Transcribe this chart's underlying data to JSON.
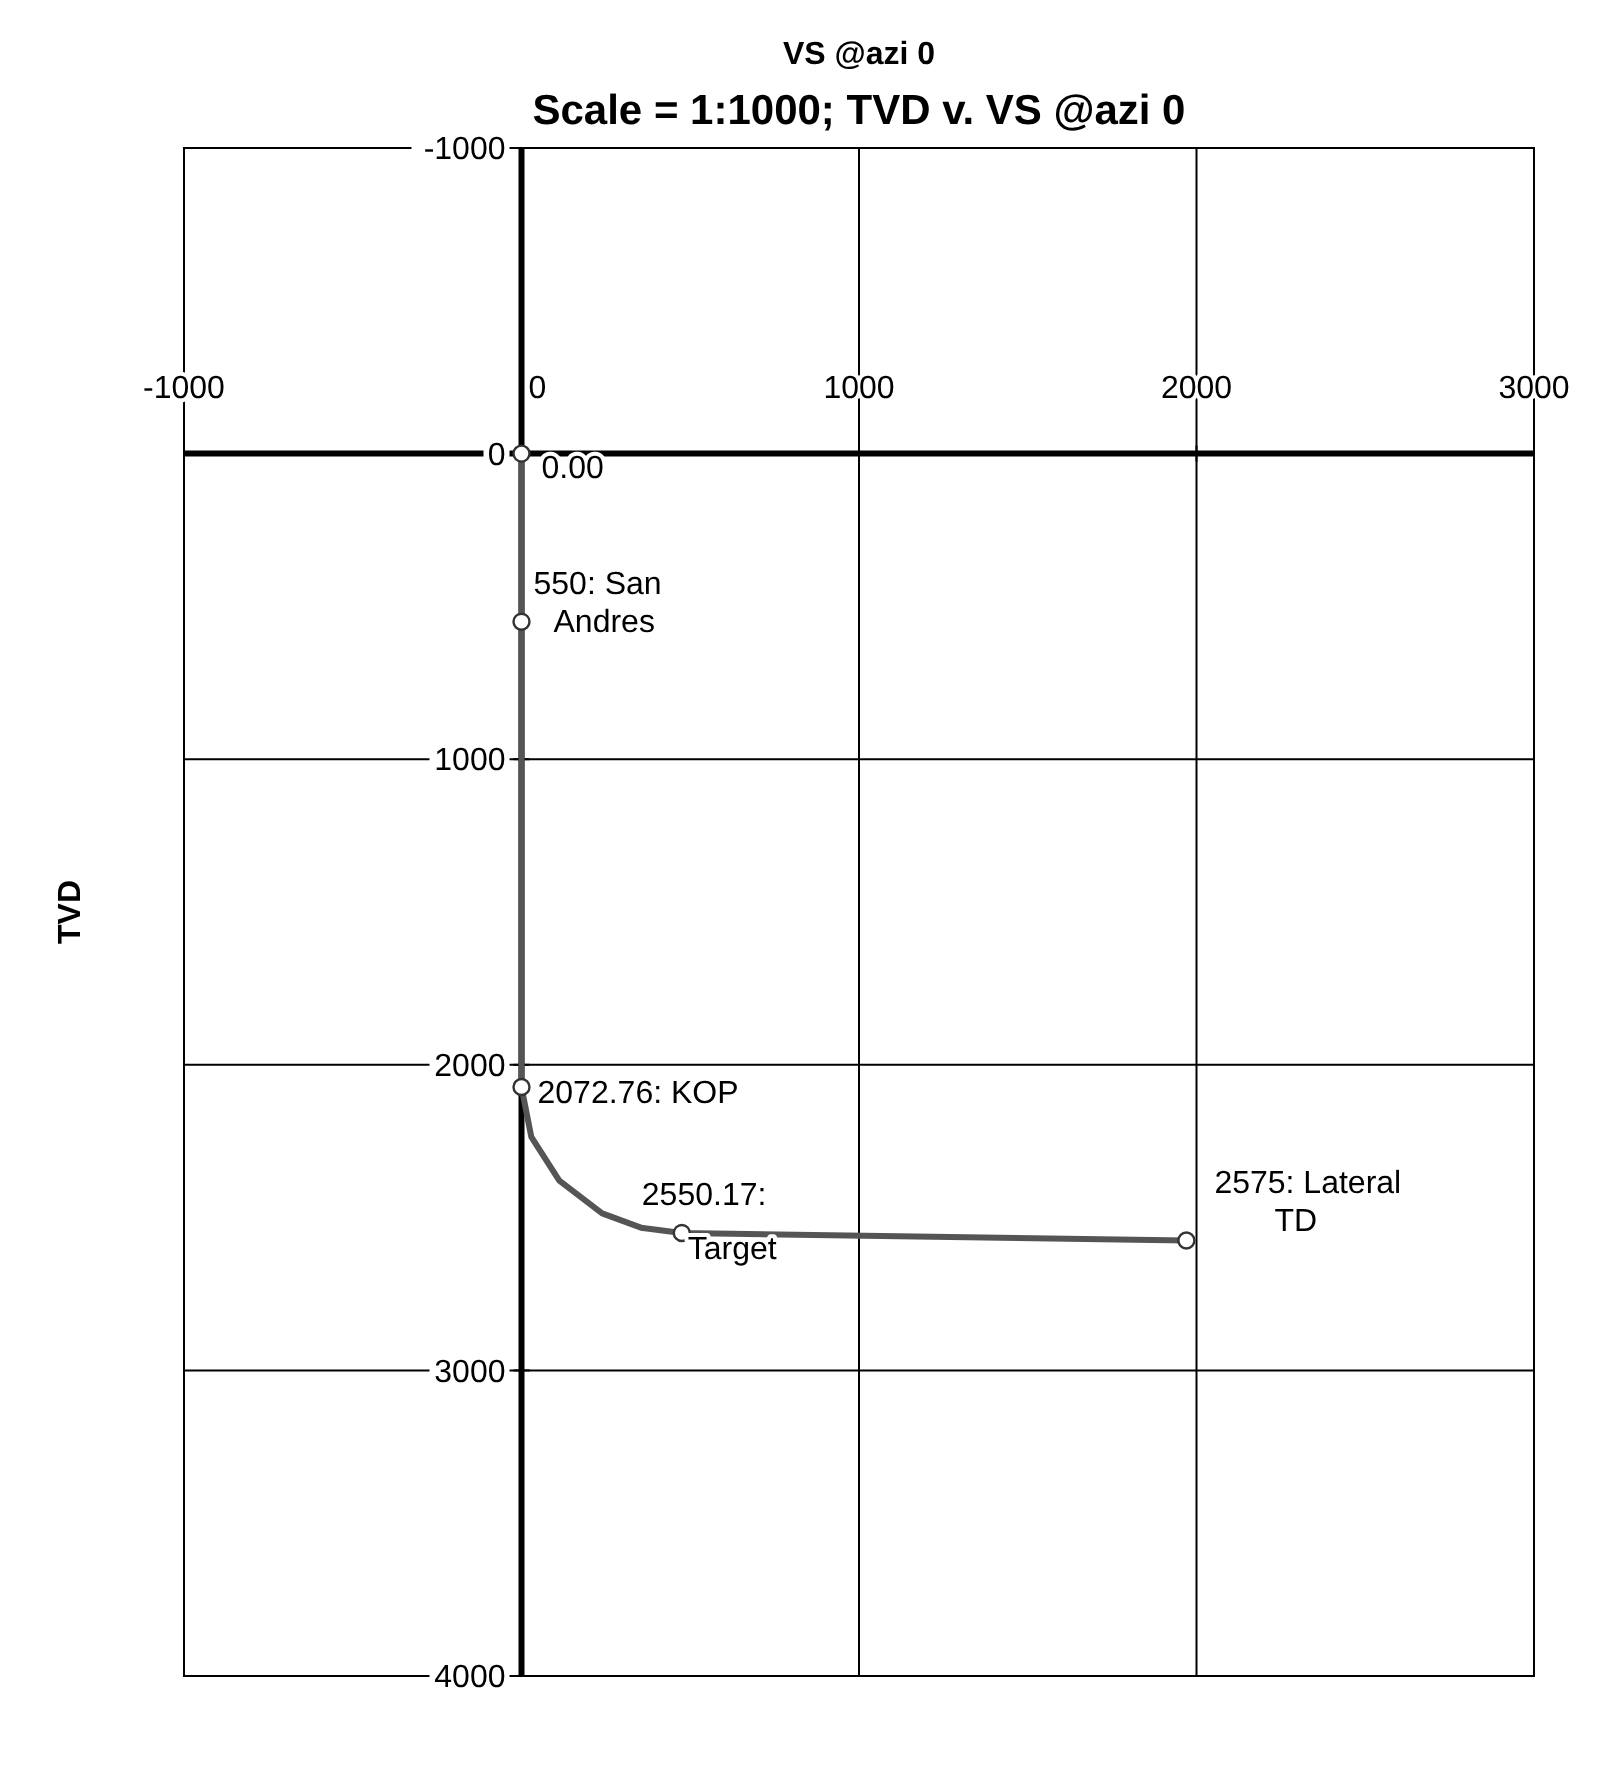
{
  "chart_data": {
    "type": "line",
    "title": "Scale = 1:1000; TVD v. VS @azi 0",
    "xlabel": "VS @azi 0",
    "ylabel": "TVD",
    "xlim": [
      -1000,
      3000
    ],
    "xticks": [
      -1000,
      0,
      1000,
      2000,
      3000
    ],
    "ylim": [
      4000,
      -1000
    ],
    "yticks": [
      -1000,
      0,
      1000,
      2000,
      3000,
      4000
    ],
    "grid": true,
    "series": [
      {
        "color": "#555555",
        "marker": "none",
        "line_style": "solid",
        "x": [
          0,
          0,
          0,
          29,
          112,
          239,
          354,
          475,
          1970
        ],
        "values": [
          0,
          550,
          2072.76,
          2236,
          2379,
          2486,
          2533,
          2550.17,
          2575
        ]
      },
      {
        "type": "scatter",
        "color": "#333333",
        "marker": "circle",
        "x": [
          0,
          0,
          0,
          475,
          1970
        ],
        "values": [
          0,
          550,
          2072.76,
          2550.17,
          2575
        ]
      }
    ],
    "annotations": [
      {
        "text": "0.00",
        "x": 0,
        "y": 0
      },
      {
        "text": "550: San\nAndres",
        "x": 0,
        "y": 550
      },
      {
        "text": "2072.76: KOP",
        "x": 0,
        "y": 2072.76
      },
      {
        "text": "2550.17:\nTarget",
        "x": 475,
        "y": 2550.17
      },
      {
        "text": "2575: Lateral\nTD",
        "x": 1970,
        "y": 2575
      }
    ]
  }
}
